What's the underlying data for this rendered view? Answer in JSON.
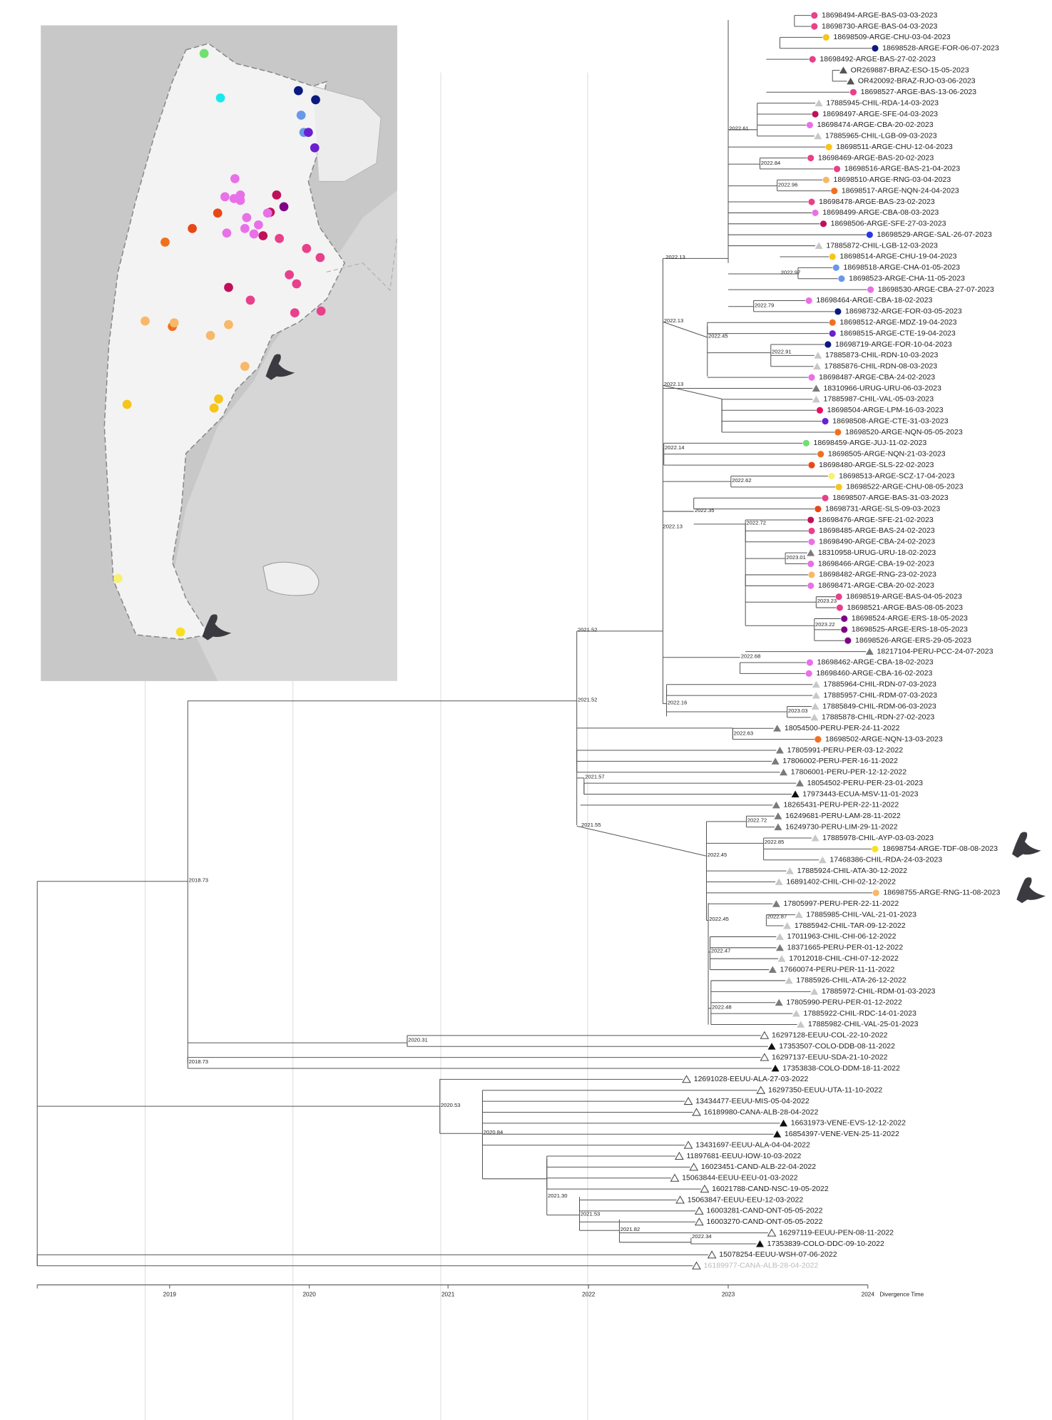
{
  "tree": {
    "leaves": [
      "18698494-ARGE-BAS-03-03-2023",
      "18698730-ARGE-BAS-04-03-2023",
      "18698509-ARGE-CHU-03-04-2023",
      "18698528-ARGE-FOR-06-07-2023",
      "18698492-ARGE-BAS-27-02-2023",
      "OR269887-BRAZ-ESO-15-05-2023",
      "OR420092-BRAZ-RJO-03-06-2023",
      "18698527-ARGE-BAS-13-06-2023",
      "17885945-CHIL-RDA-14-03-2023",
      "18698497-ARGE-SFE-04-03-2023",
      "18698474-ARGE-CBA-20-02-2023",
      "17885965-CHIL-LGB-09-03-2023",
      "18698511-ARGE-CHU-12-04-2023",
      "18698469-ARGE-BAS-20-02-2023",
      "18698516-ARGE-BAS-21-04-2023",
      "18698510-ARGE-RNG-03-04-2023",
      "18698517-ARGE-NQN-24-04-2023",
      "18698478-ARGE-BAS-23-02-2023",
      "18698499-ARGE-CBA-08-03-2023",
      "18698506-ARGE-SFE-27-03-2023",
      "18698529-ARGE-SAL-26-07-2023",
      "17885872-CHIL-LGB-12-03-2023",
      "18698514-ARGE-CHU-19-04-2023",
      "18698518-ARGE-CHA-01-05-2023",
      "18698523-ARGE-CHA-11-05-2023",
      "18698530-ARGE-CBA-27-07-2023",
      "18698464-ARGE-CBA-18-02-2023",
      "18698732-ARGE-FOR-03-05-2023",
      "18698512-ARGE-MDZ-19-04-2023",
      "18698515-ARGE-CTE-19-04-2023",
      "18698719-ARGE-FOR-10-04-2023",
      "17885873-CHIL-RDN-10-03-2023",
      "17885876-CHIL-RDN-08-03-2023",
      "18698487-ARGE-CBA-24-02-2023",
      "18310966-URUG-URU-06-03-2023",
      "17885987-CHIL-VAL-05-03-2023",
      "18698504-ARGE-LPM-16-03-2023",
      "18698508-ARGE-CTE-31-03-2023",
      "18698520-ARGE-NQN-05-05-2023",
      "18698459-ARGE-JUJ-11-02-2023",
      "18698505-ARGE-NQN-21-03-2023",
      "18698480-ARGE-SLS-22-02-2023",
      "18698513-ARGE-SCZ-17-04-2023",
      "18698522-ARGE-CHU-08-05-2023",
      "18698507-ARGE-BAS-31-03-2023",
      "18698731-ARGE-SLS-09-03-2023",
      "18698476-ARGE-SFE-21-02-2023",
      "18698485-ARGE-BAS-24-02-2023",
      "18698490-ARGE-CBA-24-02-2023",
      "18310958-URUG-URU-18-02-2023",
      "18698466-ARGE-CBA-19-02-2023",
      "18698482-ARGE-RNG-23-02-2023",
      "18698471-ARGE-CBA-20-02-2023",
      "18698519-ARGE-BAS-04-05-2023",
      "18698521-ARGE-BAS-08-05-2023",
      "18698524-ARGE-ERS-18-05-2023",
      "18698525-ARGE-ERS-18-05-2023",
      "18698526-ARGE-ERS-29-05-2023",
      "18217104-PERU-PCC-24-07-2023",
      "18698462-ARGE-CBA-18-02-2023",
      "18698460-ARGE-CBA-16-02-2023",
      "17885964-CHIL-RDN-07-03-2023",
      "17885957-CHIL-RDM-07-03-2023",
      "17885849-CHIL-RDM-06-03-2023",
      "17885878-CHIL-RDN-27-02-2023",
      "18054500-PERU-PER-24-11-2022",
      "18698502-ARGE-NQN-13-03-2023",
      "17805991-PERU-PER-03-12-2022",
      "17806002-PERU-PER-16-11-2022",
      "17806001-PERU-PER-12-12-2022",
      "18054502-PERU-PER-23-01-2023",
      "17973443-ECUA-MSV-11-01-2023",
      "18265431-PERU-PER-22-11-2022",
      "16249681-PERU-LAM-28-11-2022",
      "16249730-PERU-LIM-29-11-2022",
      "17885978-CHIL-AYP-03-03-2023",
      "18698754-ARGE-TDF-08-08-2023",
      "17468386-CHIL-RDA-24-03-2023",
      "17885924-CHIL-ATA-30-12-2022",
      "16891402-CHIL-CHI-02-12-2022",
      "18698755-ARGE-RNG-11-08-2023",
      "17805997-PERU-PER-22-11-2022",
      "17885985-CHIL-VAL-21-01-2023",
      "17885942-CHIL-TAR-09-12-2022",
      "17011963-CHIL-CHI-06-12-2022",
      "18371665-PERU-PER-01-12-2022",
      "17012018-CHIL-CHI-07-12-2022",
      "17660074-PERU-PER-11-11-2022",
      "17885926-CHIL-ATA-26-12-2022",
      "17885972-CHIL-RDM-01-03-2023",
      "17805990-PERU-PER-01-12-2022",
      "17885922-CHIL-RDC-14-01-2023",
      "17885982-CHIL-VAL-25-01-2023",
      "16297128-EEUU-COL-22-10-2022",
      "17353507-COLO-DDB-08-11-2022",
      "16297137-EEUU-SDA-21-10-2022",
      "17353838-COLO-DDM-18-11-2022",
      "12691028-EEUU-ALA-27-03-2022",
      "16297350-EEUU-UTA-11-10-2022",
      "13434477-EEUU-MIS-05-04-2022",
      "16189980-CANA-ALB-28-04-2022",
      "16631973-VENE-EVS-12-12-2022",
      "16854397-VENE-VEN-25-11-2022",
      "13431697-EEUU-ALA-04-04-2022",
      "11897681-EEUU-IOW-10-03-2022",
      "16023451-CAND-ALB-22-04-2022",
      "15063844-EEUU-EEU-01-03-2022",
      "16021788-CAND-NSC-19-05-2022",
      "15063847-EEUU-EEU-12-03-2022",
      "16003281-CAND-ONT-05-05-2022",
      "16003270-CAND-ONT-05-05-2022",
      "16297119-EEUU-PEN-08-11-2022",
      "17353839-COLO-DDC-09-10-2022",
      "15078254-EEUU-WSH-07-06-2022",
      "16189977-CANA-ALB-28-04-2022"
    ],
    "node_labels": [
      "2022.61",
      "2022.84",
      "2022.96",
      "2022.13",
      "2022.97",
      "2022.79",
      "2022.13",
      "2022.45",
      "2022.91",
      "2022.13",
      "2022.14",
      "2022.62",
      "2022.35",
      "2022.13",
      "2022.72",
      "2023.01",
      "2023.23",
      "2023.22",
      "2021.52",
      "2022.68",
      "2022.16",
      "2023.03",
      "2021.52",
      "2022.63",
      "2021.57",
      "2021.55",
      "2022.72",
      "2022.85",
      "2022.45",
      "2022.45",
      "2022.87",
      "2022.47",
      "2022.48",
      "2018.73",
      "2020.31",
      "2018.73",
      "2020.53",
      "2020.84",
      "2021.30",
      "2021.53",
      "2021.82",
      "2022.34"
    ]
  },
  "axis": {
    "ticks": [
      "2019",
      "2020",
      "2021",
      "2022",
      "2023",
      "2024"
    ],
    "title": "Divergence Time"
  }
}
